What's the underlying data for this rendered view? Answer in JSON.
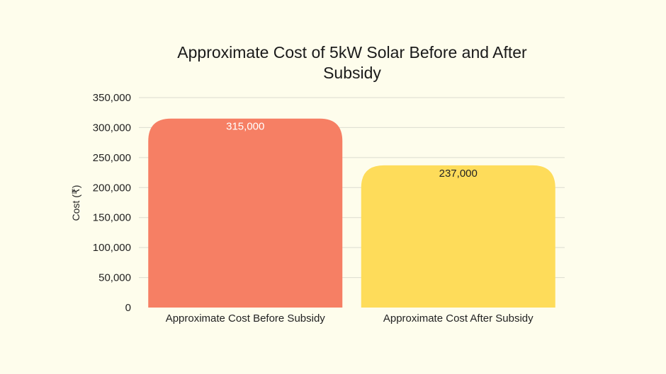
{
  "chart_data": {
    "type": "bar",
    "title_lines": [
      "Approximate Cost of 5kW Solar Before and After",
      "Subsidy"
    ],
    "ylabel": "Cost (₹)",
    "xlabel": "",
    "categories": [
      "Approximate Cost Before Subsidy",
      "Approximate Cost After Subsidy"
    ],
    "values": [
      315000,
      237000
    ],
    "value_labels": [
      "315,000",
      "237,000"
    ],
    "ylim": [
      0,
      350000
    ],
    "yticks": [
      0,
      50000,
      100000,
      150000,
      200000,
      250000,
      300000,
      350000
    ],
    "ytick_labels": [
      "0",
      "50,000",
      "100,000",
      "150,000",
      "200,000",
      "250,000",
      "300,000",
      "350,000"
    ],
    "bar_colors": [
      "#F67F64",
      "#FEDC5A"
    ],
    "label_colors": [
      "#FFFFFF",
      "#222222"
    ],
    "grid": true,
    "legend": "none"
  }
}
